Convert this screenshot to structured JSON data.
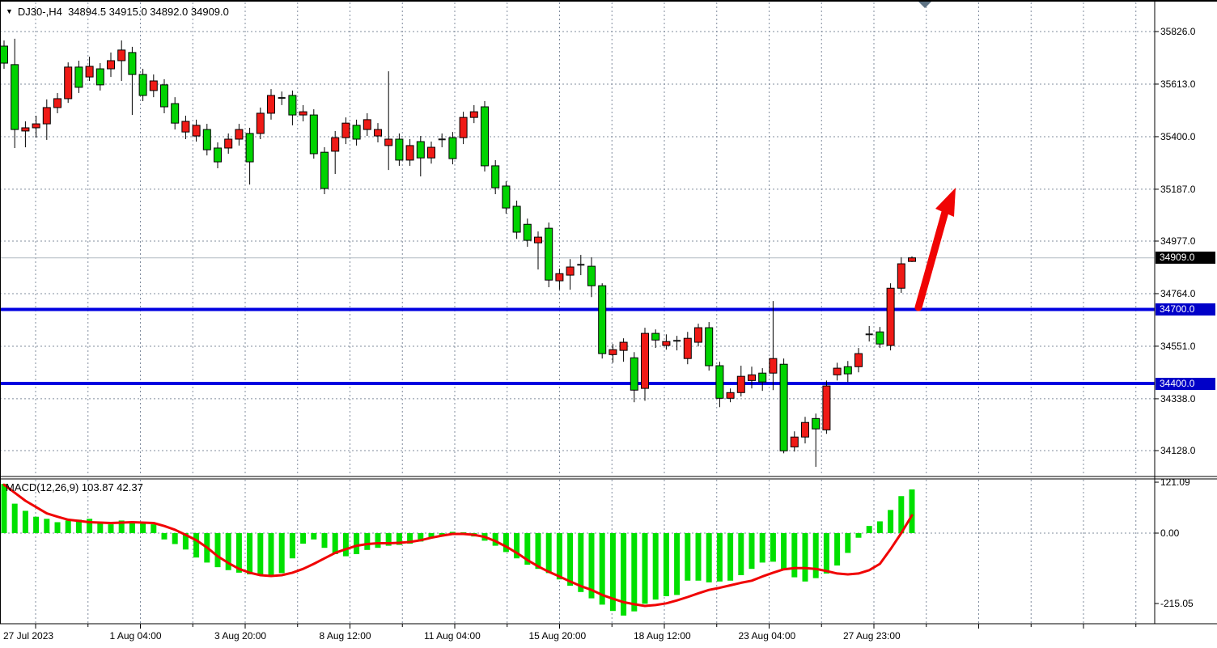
{
  "title": {
    "dropdown_icon": "▼",
    "symbol_period": "DJ30-,H4",
    "ohlc_text": "34894.5 34915.0 34892.0 34909.0"
  },
  "colors": {
    "up_candle": "#ef1a16",
    "down_candle": "#00d300",
    "candle_outline": "#000000",
    "doji": "#111111",
    "level_line_blue": "#0000e0",
    "badge_blue": "#0000c8",
    "badge_black": "#000000",
    "grid": "#808c9e",
    "current_price_line": "#b2bac2",
    "macd_histogram": "#00e000",
    "macd_signal": "#f00404",
    "arrow": "#f00404",
    "shift_marker": "#5f7485",
    "frame": "#000000"
  },
  "price_axis": {
    "tick_labels": [
      "35826.0",
      "35613.0",
      "35400.0",
      "35187.0",
      "34977.0",
      "34764.0",
      "34551.0",
      "34338.0",
      "34128.0"
    ],
    "current_price_badge": "34909.0",
    "level_badges": [
      "34700.0",
      "34400.0"
    ]
  },
  "time_axis": {
    "labels": [
      "27 Jul 2023",
      "1 Aug 04:00",
      "3 Aug 20:00",
      "8 Aug 12:00",
      "11 Aug 04:00",
      "15 Aug 20:00",
      "18 Aug 12:00",
      "23 Aug 04:00",
      "27 Aug 23:00"
    ]
  },
  "macd_panel": {
    "label": "MACD(12,26,9) 103.87 42.37",
    "axis_labels": [
      "121.09",
      "0.00",
      "-215.05"
    ]
  },
  "chart_data": {
    "type": "candlestick",
    "symbol": "DJ30-",
    "timeframe": "H4",
    "note": "red candles = bullish, green candles = bearish; blue horizontal support/resistance at 34700 and 34400; red up arrow projecting breakout above 34700",
    "y_axis_ticks": [
      35826,
      35613,
      35400,
      35187,
      34977,
      34764,
      34551,
      34338,
      34128
    ],
    "current_price": 34909,
    "support_resistance_levels": [
      34700,
      34400
    ],
    "arrow_annotation": {
      "from_price": 34700,
      "to_price": 35190,
      "direction": "up",
      "color": "red"
    },
    "ohlc": [
      [
        35767,
        35790,
        35675,
        35698
      ],
      [
        35692,
        35797,
        35354,
        35429
      ],
      [
        35423,
        35462,
        35357,
        35436
      ],
      [
        35436,
        35485,
        35396,
        35452
      ],
      [
        35452,
        35551,
        35387,
        35518
      ],
      [
        35518,
        35577,
        35495,
        35554
      ],
      [
        35554,
        35701,
        35537,
        35682
      ],
      [
        35682,
        35708,
        35577,
        35600
      ],
      [
        35642,
        35724,
        35626,
        35685
      ],
      [
        35675,
        35698,
        35587,
        35610
      ],
      [
        35675,
        35741,
        35642,
        35708
      ],
      [
        35708,
        35790,
        35626,
        35751
      ],
      [
        35741,
        35764,
        35488,
        35652
      ],
      [
        35652,
        35675,
        35544,
        35567
      ],
      [
        35587,
        35652,
        35560,
        35626
      ],
      [
        35610,
        35633,
        35495,
        35521
      ],
      [
        35534,
        35560,
        35429,
        35455
      ],
      [
        35419,
        35485,
        35390,
        35462
      ],
      [
        35403,
        35469,
        35380,
        35446
      ],
      [
        35429,
        35452,
        35324,
        35347
      ],
      [
        35354,
        35377,
        35272,
        35298
      ],
      [
        35354,
        35413,
        35331,
        35390
      ],
      [
        35390,
        35452,
        35364,
        35429
      ],
      [
        35413,
        35436,
        35206,
        35298
      ],
      [
        35413,
        35518,
        35390,
        35495
      ],
      [
        35495,
        35593,
        35469,
        35567
      ],
      [
        35557,
        35583,
        35528,
        35557
      ],
      [
        35567,
        35587,
        35446,
        35488
      ],
      [
        35488,
        35528,
        35462,
        35501
      ],
      [
        35488,
        35511,
        35311,
        35331
      ],
      [
        35337,
        35357,
        35167,
        35190
      ],
      [
        35341,
        35423,
        35249,
        35396
      ],
      [
        35396,
        35478,
        35370,
        35455
      ],
      [
        35446,
        35469,
        35364,
        35390
      ],
      [
        35429,
        35495,
        35403,
        35469
      ],
      [
        35403,
        35455,
        35377,
        35429
      ],
      [
        35364,
        35665,
        35265,
        35390
      ],
      [
        35390,
        35413,
        35282,
        35305
      ],
      [
        35305,
        35390,
        35282,
        35364
      ],
      [
        35380,
        35403,
        35239,
        35314
      ],
      [
        35314,
        35380,
        35291,
        35357
      ],
      [
        35389,
        35413,
        35357,
        35389
      ],
      [
        35396,
        35419,
        35288,
        35311
      ],
      [
        35396,
        35501,
        35370,
        35478
      ],
      [
        35478,
        35528,
        35455,
        35501
      ],
      [
        35521,
        35544,
        35259,
        35282
      ],
      [
        35282,
        35305,
        35167,
        35193
      ],
      [
        35200,
        35219,
        35088,
        35111
      ],
      [
        35118,
        35141,
        34986,
        35013
      ],
      [
        35045,
        35068,
        34954,
        34980
      ],
      [
        34970,
        35016,
        34862,
        34993
      ],
      [
        35029,
        35052,
        34790,
        34819
      ],
      [
        34816,
        34865,
        34780,
        34845
      ],
      [
        34839,
        34904,
        34780,
        34872
      ],
      [
        34881,
        34921,
        34839,
        34881
      ],
      [
        34875,
        34911,
        34750,
        34796
      ],
      [
        34796,
        34806,
        34501,
        34521
      ],
      [
        34517,
        34560,
        34484,
        34537
      ],
      [
        34534,
        34583,
        34488,
        34567
      ],
      [
        34504,
        34527,
        34324,
        34373
      ],
      [
        34380,
        34626,
        34330,
        34603
      ],
      [
        34603,
        34619,
        34544,
        34576
      ],
      [
        34554,
        34599,
        34537,
        34570
      ],
      [
        34573,
        34593,
        34534,
        34573
      ],
      [
        34501,
        34609,
        34478,
        34583
      ],
      [
        34567,
        34642,
        34550,
        34626
      ],
      [
        34626,
        34649,
        34452,
        34472
      ],
      [
        34472,
        34488,
        34304,
        34340
      ],
      [
        34340,
        34380,
        34324,
        34363
      ],
      [
        34363,
        34472,
        34347,
        34429
      ],
      [
        34412,
        34468,
        34380,
        34435
      ],
      [
        34442,
        34462,
        34370,
        34406
      ],
      [
        34442,
        34734,
        34373,
        34501
      ],
      [
        34478,
        34501,
        34117,
        34127
      ],
      [
        34143,
        34206,
        34124,
        34183
      ],
      [
        34183,
        34265,
        34157,
        34242
      ],
      [
        34258,
        34278,
        34062,
        34216
      ],
      [
        34212,
        34412,
        34196,
        34390
      ],
      [
        34435,
        34484,
        34412,
        34462
      ],
      [
        34468,
        34491,
        34406,
        34439
      ],
      [
        34468,
        34544,
        34445,
        34521
      ],
      [
        34599,
        34633,
        34570,
        34599
      ],
      [
        34609,
        34629,
        34544,
        34560
      ],
      [
        34554,
        34806,
        34534,
        34786
      ],
      [
        34786,
        34911,
        34767,
        34885
      ],
      [
        34894.5,
        34915,
        34892,
        34909
      ]
    ],
    "macd": {
      "settings": [
        12,
        26,
        9
      ],
      "current_macd": 103.87,
      "current_signal": 42.37,
      "scale": [
        121.09,
        0.0,
        -215.05
      ],
      "histogram": [
        117,
        70,
        53,
        39,
        34,
        26,
        30,
        32,
        34,
        26,
        21,
        30,
        26,
        23,
        21,
        -15,
        -26,
        -39,
        -58,
        -70,
        -81,
        -88,
        -94,
        -98,
        -100,
        -102,
        -95,
        -60,
        -25,
        -15,
        -35,
        -50,
        -55,
        -50,
        -40,
        -35,
        -30,
        -28,
        -25,
        -20,
        -12,
        -5,
        3,
        2,
        -8,
        -18,
        -30,
        -45,
        -60,
        -75,
        -85,
        -95,
        -110,
        -125,
        -140,
        -155,
        -170,
        -185,
        -196,
        -186,
        -168,
        -158,
        -150,
        -147,
        -113,
        -113,
        -117,
        -115,
        -113,
        -100,
        -85,
        -70,
        -68,
        -88,
        -105,
        -115,
        -107,
        -96,
        -77,
        -47,
        -11,
        17,
        28,
        55,
        88,
        103.87
      ],
      "signal": [
        115,
        96,
        77,
        62,
        47,
        39,
        32,
        29,
        26,
        25,
        24,
        25,
        26,
        25,
        24,
        17,
        8,
        -4,
        -17,
        -34,
        -55,
        -71,
        -85,
        -94,
        -100,
        -102,
        -100,
        -94,
        -85,
        -73,
        -60,
        -47,
        -38,
        -30,
        -26,
        -24,
        -24,
        -23,
        -21,
        -17,
        -11,
        -6,
        -2,
        -2,
        -4,
        -9,
        -19,
        -32,
        -47,
        -64,
        -79,
        -92,
        -103,
        -115,
        -126,
        -135,
        -147,
        -156,
        -164,
        -169,
        -173,
        -171,
        -167,
        -160,
        -152,
        -143,
        -135,
        -130,
        -124,
        -118,
        -113,
        -103,
        -94,
        -86,
        -83,
        -83,
        -85,
        -90,
        -96,
        -98,
        -96,
        -88,
        -73,
        -38,
        0,
        42.37
      ]
    }
  }
}
